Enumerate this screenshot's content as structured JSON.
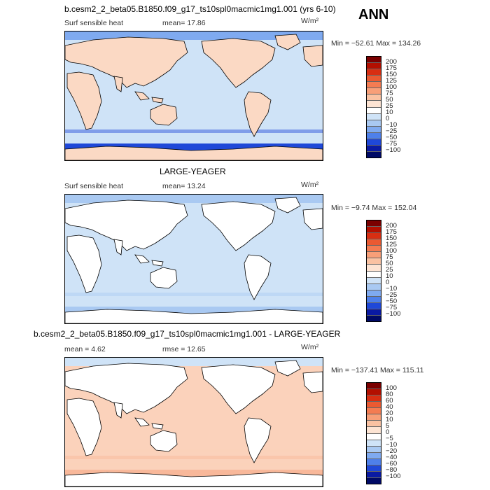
{
  "header": {
    "run_title": "b.cesm2_2_beta05.B1850.f09_g17_ts10spl0macmic1mg1.001 (yrs 6-10)",
    "season": "ANN"
  },
  "panels": [
    {
      "id": "model",
      "title": "",
      "variable": "Surf sensible heat",
      "stat1": "mean=   17.86",
      "stat2": "",
      "units": "W/m²",
      "minmax": "Min = −52.61 Max = 134.26",
      "colorbar_levels": [
        "200",
        "175",
        "150",
        "125",
        "100",
        "75",
        "50",
        "25",
        "10",
        "0",
        "−10",
        "−25",
        "−50",
        "−75",
        "−100"
      ],
      "colorbar_colors": [
        "#7a0000",
        "#b30f00",
        "#d82e12",
        "#ea5a32",
        "#f47c52",
        "#f89f78",
        "#fac2a2",
        "#fde4d3",
        "#ffffff",
        "#cfe3f7",
        "#a9c9f2",
        "#7faaf0",
        "#4e80ea",
        "#1f48d8",
        "#0a1aa3",
        "#000a66"
      ],
      "ocean_color": "#cfe3f7",
      "land_color": "#fbd9c4",
      "south_band_color": "#1f48d8",
      "north_band_color": "#7faaf0"
    },
    {
      "id": "obs",
      "title": "LARGE-YEAGER",
      "variable": "Surf sensible heat",
      "stat1": "mean=   13.24",
      "stat2": "",
      "units": "W/m²",
      "minmax": "Min =   −9.74 Max = 152.04",
      "colorbar_levels": [
        "200",
        "175",
        "150",
        "125",
        "100",
        "75",
        "50",
        "25",
        "10",
        "0",
        "−10",
        "−25",
        "−50",
        "−75",
        "−100"
      ],
      "colorbar_colors": [
        "#7a0000",
        "#b30f00",
        "#d82e12",
        "#ea5a32",
        "#f47c52",
        "#f89f78",
        "#fac2a2",
        "#fde4d3",
        "#ffffff",
        "#cfe3f7",
        "#a9c9f2",
        "#7faaf0",
        "#4e80ea",
        "#1f48d8",
        "#0a1aa3",
        "#000a66"
      ],
      "ocean_color": "#cfe3f7",
      "land_color": "#ffffff",
      "south_band_color": "#a9c9f2",
      "north_band_color": "#a9c9f2"
    },
    {
      "id": "diff",
      "title": "b.cesm2_2_beta05.B1850.f09_g17_ts10spl0macmic1mg1.001 - LARGE-YEAGER",
      "variable": "",
      "stat1": "mean =    4.62",
      "stat2": "rmse =   12.65",
      "units": "W/m²",
      "minmax": "Min = −137.41 Max = 115.11",
      "colorbar_levels": [
        "100",
        "80",
        "60",
        "40",
        "20",
        "10",
        "5",
        "0",
        "−5",
        "−10",
        "−20",
        "−40",
        "−60",
        "−80",
        "−100"
      ],
      "colorbar_colors": [
        "#7a0000",
        "#b30f00",
        "#d82e12",
        "#ea5a32",
        "#f47c52",
        "#f89f78",
        "#fac2a2",
        "#fde4d3",
        "#ffffff",
        "#cfe3f7",
        "#a9c9f2",
        "#7faaf0",
        "#4e80ea",
        "#1f48d8",
        "#0a1aa3",
        "#000a66"
      ],
      "ocean_color": "#fbd2bb",
      "land_color": "#ffffff",
      "south_band_color": "#f8b89a",
      "north_band_color": "#cfe3f7"
    }
  ]
}
